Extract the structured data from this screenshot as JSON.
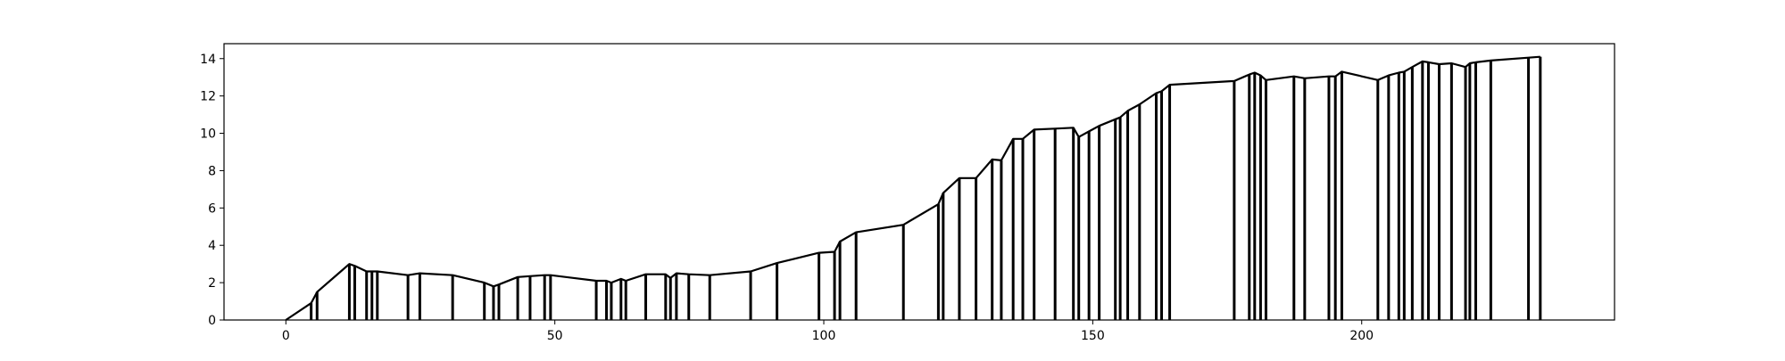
{
  "chart_data": {
    "type": "line",
    "title": "",
    "xlabel": "",
    "ylabel": "",
    "xlim": [
      -11.5,
      247
    ],
    "ylim": [
      0,
      14.8
    ],
    "xticks": [
      0,
      50,
      100,
      150,
      200
    ],
    "yticks": [
      0,
      2,
      4,
      6,
      8,
      10,
      12,
      14
    ],
    "grid": false,
    "legend": "none",
    "line_color": "#000000",
    "series": [
      {
        "x": [
          0,
          4.7,
          5.8,
          11.8,
          12.8,
          15.0,
          16.0,
          17.0,
          22.7,
          24.9,
          31.0,
          36.9,
          38.6,
          39.6,
          43.1,
          45.4,
          48.1,
          49.2,
          57.7,
          59.6,
          60.5,
          62.3,
          63.2,
          66.9,
          70.6,
          71.5,
          72.6,
          74.9,
          78.8,
          86.4,
          91.3,
          99.1,
          102.0,
          103.0,
          106.0,
          114.8,
          121.3,
          122.2,
          125.2,
          128.3,
          131.3,
          133.0,
          135.2,
          137.0,
          139.1,
          143.0,
          146.4,
          147.4,
          149.3,
          151.2,
          154.2,
          155.1,
          156.5,
          158.7,
          161.8,
          162.8,
          164.3,
          176.3,
          179.1,
          180.1,
          181.2,
          182.2,
          187.4,
          189.4,
          193.9,
          195.1,
          196.3,
          203.0,
          205.0,
          206.9,
          207.9,
          209.4,
          211.3,
          212.4,
          214.4,
          216.7,
          219.3,
          220.1,
          221.2,
          224.0,
          231.0,
          233.2
        ],
        "y": [
          0,
          0.9,
          1.5,
          3.0,
          2.9,
          2.6,
          2.6,
          2.6,
          2.4,
          2.5,
          2.4,
          2.0,
          1.8,
          1.9,
          2.3,
          2.35,
          2.4,
          2.4,
          2.1,
          2.1,
          2.0,
          2.2,
          2.1,
          2.45,
          2.45,
          2.25,
          2.5,
          2.45,
          2.4,
          2.6,
          3.05,
          3.6,
          3.65,
          4.2,
          4.7,
          5.1,
          6.2,
          6.8,
          7.6,
          7.6,
          8.6,
          8.55,
          9.7,
          9.7,
          10.2,
          10.25,
          10.3,
          9.8,
          10.1,
          10.4,
          10.75,
          10.85,
          11.2,
          11.55,
          12.15,
          12.25,
          12.6,
          12.8,
          13.15,
          13.25,
          13.1,
          12.85,
          13.05,
          12.95,
          13.05,
          13.05,
          13.3,
          12.85,
          13.1,
          13.25,
          13.3,
          13.55,
          13.85,
          13.8,
          13.7,
          13.75,
          13.55,
          13.75,
          13.8,
          13.9,
          14.05,
          14.1
        ]
      }
    ]
  }
}
